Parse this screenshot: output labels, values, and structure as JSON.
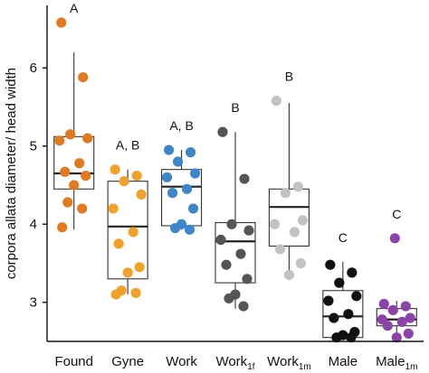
{
  "chart_data": {
    "type": "box-strip",
    "ylabel": "corpora allata diameter/ head width",
    "ylim": [
      2.5,
      6.8
    ],
    "yticks": [
      3,
      4,
      5,
      6
    ],
    "groups": [
      {
        "label": "Found",
        "sub": "",
        "sig": "A",
        "color": "#E07A22",
        "box": {
          "q1": 4.45,
          "median": 4.65,
          "q3": 5.12,
          "low": 3.93,
          "high": 6.2
        },
        "points": [
          6.58,
          5.88,
          5.15,
          5.1,
          5.07,
          4.78,
          4.67,
          4.62,
          4.5,
          4.28,
          4.2,
          3.96
        ],
        "outliers": []
      },
      {
        "label": "Gyne",
        "sub": "",
        "sig": "A, B",
        "color": "#EFA12B",
        "box": {
          "q1": 3.3,
          "median": 3.97,
          "q3": 4.55,
          "low": 3.1,
          "high": 4.7
        },
        "points": [
          4.7,
          4.62,
          4.55,
          4.38,
          4.2,
          3.9,
          3.75,
          3.45,
          3.38,
          3.15,
          3.12,
          3.1
        ],
        "outliers": []
      },
      {
        "label": "Work",
        "sub": "",
        "sig": "A, B",
        "color": "#3F86C8",
        "box": {
          "q1": 3.98,
          "median": 4.48,
          "q3": 4.7,
          "low": 3.93,
          "high": 4.95
        },
        "points": [
          4.95,
          4.92,
          4.8,
          4.65,
          4.6,
          4.45,
          4.4,
          4.2,
          4.0,
          3.95,
          3.93
        ],
        "outliers": []
      },
      {
        "label": "Work",
        "sub": "1f",
        "sig": "B",
        "color": "#555555",
        "box": {
          "q1": 3.25,
          "median": 3.78,
          "q3": 4.02,
          "low": 2.92,
          "high": 5.18
        },
        "points": [
          5.18,
          4.58,
          4.0,
          3.92,
          3.8,
          3.62,
          3.48,
          3.3,
          3.1,
          3.05,
          2.95
        ],
        "outliers": []
      },
      {
        "label": "Work",
        "sub": "1m",
        "sig": "B",
        "color": "#C2C2C2",
        "box": {
          "q1": 3.72,
          "median": 4.22,
          "q3": 4.45,
          "low": 3.35,
          "high": 5.55
        },
        "points": [
          5.58,
          4.48,
          4.4,
          4.05,
          4.0,
          3.9,
          3.68,
          3.5,
          3.35
        ],
        "outliers": []
      },
      {
        "label": "Male",
        "sub": "",
        "sig": "C",
        "color": "#111111",
        "box": {
          "q1": 2.55,
          "median": 2.82,
          "q3": 3.15,
          "low": 2.55,
          "high": 3.52
        },
        "points": [
          3.48,
          3.38,
          3.25,
          3.08,
          3.02,
          2.85,
          2.8,
          2.62,
          2.58,
          2.55,
          2.55
        ],
        "outliers": []
      },
      {
        "label": "Male",
        "sub": "1m",
        "sig": "C",
        "color": "#8B44A8",
        "box": {
          "q1": 2.7,
          "median": 2.78,
          "q3": 2.92,
          "low": 2.55,
          "high": 3.02
        },
        "points": [
          2.98,
          2.95,
          2.9,
          2.8,
          2.78,
          2.75,
          2.7,
          2.6,
          2.55
        ],
        "outliers": [
          3.82
        ]
      }
    ]
  }
}
